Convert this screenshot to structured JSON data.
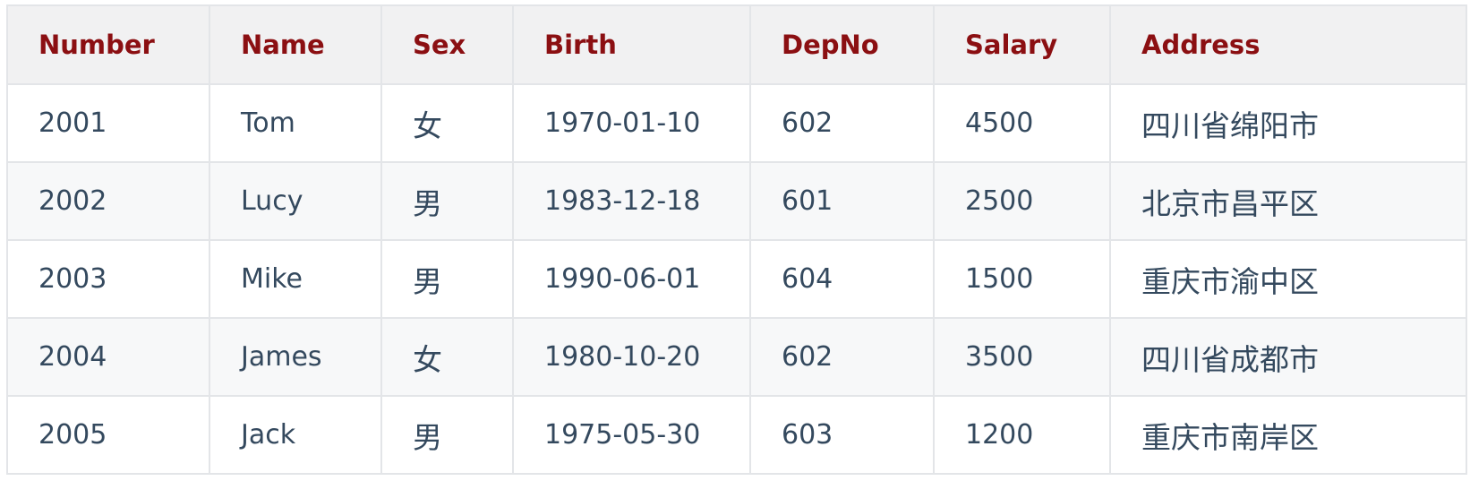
{
  "table": {
    "headers": [
      "Number",
      "Name",
      "Sex",
      "Birth",
      "DepNo",
      "Salary",
      "Address"
    ],
    "rows": [
      {
        "number": "2001",
        "name": "Tom",
        "sex": "女",
        "birth": "1970-01-10",
        "depno": "602",
        "salary": "4500",
        "address": "四川省绵阳市"
      },
      {
        "number": "2002",
        "name": "Lucy",
        "sex": "男",
        "birth": "1983-12-18",
        "depno": "601",
        "salary": "2500",
        "address": "北京市昌平区"
      },
      {
        "number": "2003",
        "name": "Mike",
        "sex": "男",
        "birth": "1990-06-01",
        "depno": "604",
        "salary": "1500",
        "address": "重庆市渝中区"
      },
      {
        "number": "2004",
        "name": "James",
        "sex": "女",
        "birth": "1980-10-20",
        "depno": "602",
        "salary": "3500",
        "address": "四川省成都市"
      },
      {
        "number": "2005",
        "name": "Jack",
        "sex": "男",
        "birth": "1975-05-30",
        "depno": "603",
        "salary": "1200",
        "address": "重庆市南岸区"
      }
    ]
  },
  "colors": {
    "header_text": "#8b0f12",
    "body_text": "#34495e",
    "header_bg": "#f1f1f2",
    "stripe_bg": "#f7f8f9",
    "border": "#e3e5e8"
  }
}
